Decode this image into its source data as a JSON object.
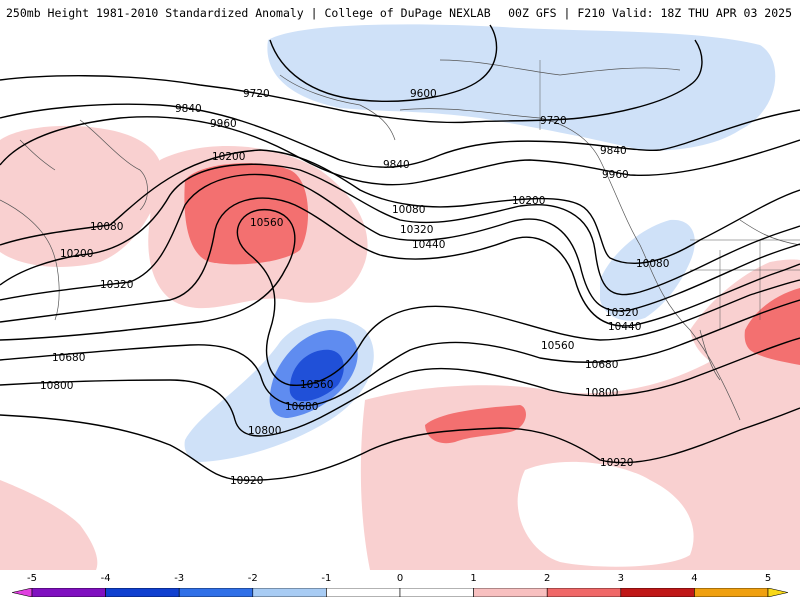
{
  "header": {
    "title": "250mb Height 1981-2010 Standardized Anomaly | College of DuPage NEXLAB",
    "run_info": "00Z GFS | F210 Valid: 18Z THU APR 03 2025"
  },
  "contour_labels": {
    "c9600": "9600",
    "c9720a": "9720",
    "c9720b": "9720",
    "c9840a": "9840",
    "c9840b": "9840",
    "c9840c": "9840",
    "c9960a": "9960",
    "c9960b": "9960",
    "c10080a": "10080",
    "c10080b": "10080",
    "c10080c": "10080",
    "c10200a": "10200",
    "c10200b": "10200",
    "c10200c": "10200",
    "c10320a": "10320",
    "c10320b": "10320",
    "c10320c": "10320",
    "c10440a": "10440",
    "c10440b": "10440",
    "c10560a": "10560",
    "c10560b": "10560",
    "c10560c": "10560",
    "c10680a": "10680",
    "c10680b": "10680",
    "c10680c": "10680",
    "c10800a": "10800",
    "c10800b": "10800",
    "c10800c": "10800",
    "c10920a": "10920",
    "c10920b": "10920"
  },
  "colorbar": {
    "ticks": [
      "-5",
      "-4",
      "-3",
      "-2",
      "-1",
      "0",
      "1",
      "2",
      "3",
      "4",
      "5"
    ],
    "colors": [
      "#e040e0",
      "#8010c0",
      "#1040d0",
      "#3070e8",
      "#a8ccf4",
      "#ffffff",
      "#ffffff",
      "#f8c0c0",
      "#f06868",
      "#c01818",
      "#f0a010",
      "#f8d818"
    ]
  }
}
